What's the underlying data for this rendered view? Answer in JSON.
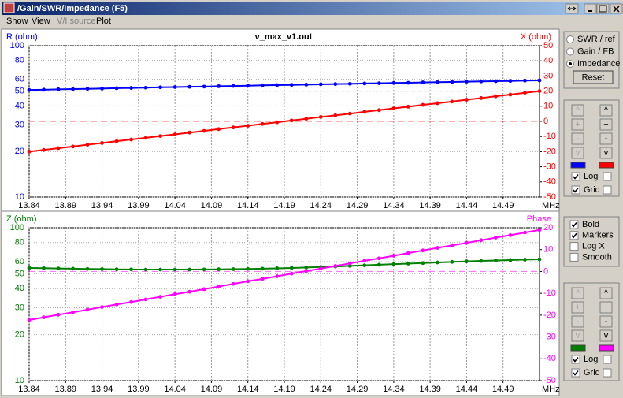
{
  "window": {
    "title": "/Gain/SWR/Impedance (F5)",
    "menu": [
      "Show",
      "View",
      "V/I source",
      "Plot"
    ],
    "view_modes": {
      "options": [
        "SWR / ref",
        "Gain / FB",
        "Impedance"
      ],
      "selected": 2
    },
    "reset": "Reset",
    "controls": [
      {
        "buttons": [
          "^",
          "+",
          "-",
          "v"
        ],
        "log_label": "Log",
        "grid_label": "Grid",
        "log_checked": [
          true,
          false
        ],
        "grid_checked": [
          true,
          false
        ]
      },
      {
        "buttons": [
          "^",
          "+",
          "-",
          "v"
        ],
        "log_label": "Log",
        "grid_label": "Grid",
        "log_checked": [
          true,
          false
        ],
        "grid_checked": [
          true,
          false
        ]
      }
    ],
    "options": [
      {
        "label": "Bold",
        "checked": true
      },
      {
        "label": "Markers",
        "checked": true
      },
      {
        "label": "Log X",
        "checked": false
      },
      {
        "label": "Smooth",
        "checked": false
      }
    ]
  },
  "chart_data": [
    {
      "type": "line",
      "title": "v_max_v1.out",
      "y_label": "R (ohm)",
      "y2_label": "X (ohm)",
      "x_label": "MHz",
      "log_y": true,
      "grid": true,
      "markers": true,
      "x": [
        13.84,
        13.86,
        13.88,
        13.9,
        13.92,
        13.94,
        13.96,
        13.98,
        14,
        14.02,
        14.04,
        14.06,
        14.08,
        14.1,
        14.12,
        14.14,
        14.16,
        14.18,
        14.2,
        14.22,
        14.24,
        14.26,
        14.28,
        14.3,
        14.32,
        14.34,
        14.36,
        14.38,
        14.4,
        14.42,
        14.44,
        14.46,
        14.48,
        14.5,
        14.52,
        14.54
      ],
      "xlim": [
        13.84,
        14.54
      ],
      "xticks": [
        13.84,
        13.89,
        13.94,
        13.99,
        14.04,
        14.09,
        14.14,
        14.19,
        14.24,
        14.29,
        14.34,
        14.39,
        14.44,
        14.49
      ],
      "ylim": [
        10,
        100
      ],
      "yticks": [
        10,
        20,
        30,
        40,
        50,
        60,
        80,
        100
      ],
      "y2lim": [
        -50,
        50
      ],
      "y2ticks": [
        -50,
        -40,
        -30,
        -20,
        -10,
        0,
        10,
        20,
        30,
        40,
        50
      ],
      "series": [
        {
          "name": "R",
          "color": "#0000ff",
          "values": [
            51.0,
            51.2,
            51.5,
            51.7,
            51.9,
            52.1,
            52.4,
            52.6,
            52.8,
            53.1,
            53.3,
            53.5,
            53.7,
            54.0,
            54.2,
            54.4,
            54.7,
            54.9,
            55.1,
            55.3,
            55.6,
            55.8,
            56.0,
            56.3,
            56.5,
            56.7,
            56.9,
            57.2,
            57.4,
            57.6,
            57.9,
            58.1,
            58.3,
            58.5,
            58.8,
            59.0
          ]
        },
        {
          "name": "X",
          "color": "#ff0000",
          "axis": "y2",
          "values": [
            -20.0,
            -18.9,
            -17.7,
            -16.6,
            -15.4,
            -14.3,
            -13.1,
            -12.0,
            -10.9,
            -9.7,
            -8.6,
            -7.4,
            -6.3,
            -5.1,
            -4.0,
            -2.9,
            -1.7,
            -0.6,
            0.6,
            1.7,
            2.9,
            4.0,
            5.1,
            6.3,
            7.4,
            8.6,
            9.7,
            10.9,
            12.0,
            13.1,
            14.3,
            15.4,
            16.6,
            17.7,
            18.9,
            20.0
          ]
        }
      ]
    },
    {
      "type": "line",
      "y_label": "Z (ohm)",
      "y2_label": "Phase",
      "x_label": "MHz",
      "log_y": true,
      "grid": true,
      "markers": true,
      "x": [
        13.84,
        13.86,
        13.88,
        13.9,
        13.92,
        13.94,
        13.96,
        13.98,
        14,
        14.02,
        14.04,
        14.06,
        14.08,
        14.1,
        14.12,
        14.14,
        14.16,
        14.18,
        14.2,
        14.22,
        14.24,
        14.26,
        14.28,
        14.3,
        14.32,
        14.34,
        14.36,
        14.38,
        14.4,
        14.42,
        14.44,
        14.46,
        14.48,
        14.5,
        14.52,
        14.54
      ],
      "xlim": [
        13.84,
        14.54
      ],
      "xticks": [
        13.84,
        13.89,
        13.94,
        13.99,
        14.04,
        14.09,
        14.14,
        14.19,
        14.24,
        14.29,
        14.34,
        14.39,
        14.44,
        14.49
      ],
      "ylim": [
        10,
        100
      ],
      "yticks": [
        10,
        20,
        30,
        40,
        50,
        60,
        80,
        100
      ],
      "y2lim": [
        -50,
        20
      ],
      "y2ticks": [
        -50,
        -40,
        -30,
        -20,
        -10,
        0,
        10,
        20
      ],
      "series": [
        {
          "name": "Z",
          "color": "#008000",
          "values": [
            54.6,
            54.4,
            54.2,
            54.0,
            53.8,
            53.7,
            53.5,
            53.4,
            53.3,
            53.3,
            53.3,
            53.3,
            53.4,
            53.5,
            53.6,
            53.8,
            54.0,
            54.3,
            54.6,
            55.0,
            55.4,
            55.8,
            56.3,
            56.8,
            57.3,
            57.8,
            58.3,
            58.8,
            59.3,
            59.8,
            60.3,
            60.7,
            61.1,
            61.5,
            61.9,
            62.2
          ]
        },
        {
          "name": "Phase",
          "color": "#ff00ff",
          "axis": "y2",
          "values": [
            -22.2,
            -21.0,
            -19.8,
            -18.7,
            -17.5,
            -16.3,
            -15.1,
            -14.0,
            -12.8,
            -11.6,
            -10.4,
            -9.3,
            -8.1,
            -6.9,
            -5.7,
            -4.5,
            -3.4,
            -2.2,
            -1.0,
            0.2,
            1.3,
            2.5,
            3.7,
            4.9,
            6.0,
            7.2,
            8.4,
            9.6,
            10.8,
            11.9,
            13.1,
            14.3,
            15.5,
            16.6,
            17.8,
            19.0
          ]
        }
      ]
    }
  ]
}
